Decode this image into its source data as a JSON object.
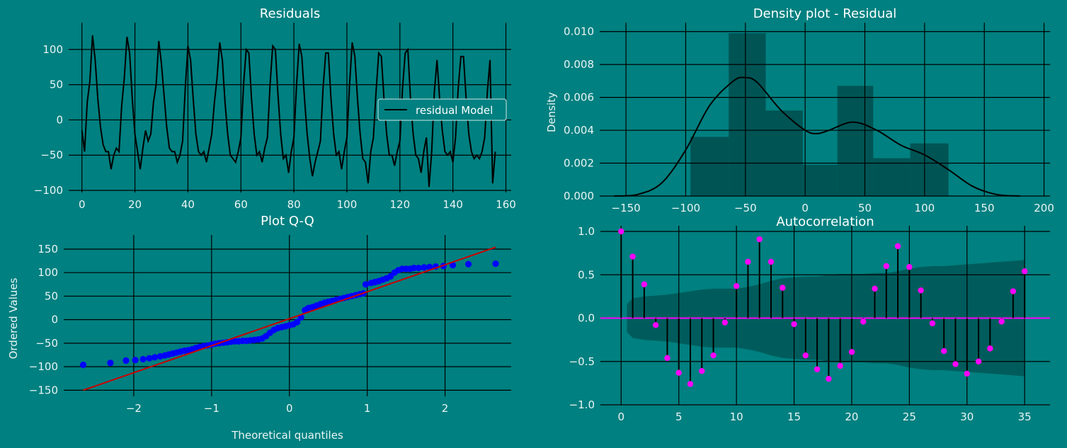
{
  "colors": {
    "background": "#008080",
    "grid": "#000000",
    "residual_line": "#000000",
    "hist_bar": "#004c4c",
    "kde_line": "#000000",
    "qq_points": "#0000ff",
    "qq_line": "#cc0000",
    "acf_markers": "#ff00ff",
    "acf_stems": "#000000",
    "acf_confidence": "#005656"
  },
  "chart_data": [
    {
      "id": "residuals",
      "type": "line",
      "title": "Residuals",
      "xlabel": "",
      "ylabel": "",
      "xlim": [
        -5,
        162
      ],
      "ylim": [
        -103,
        130
      ],
      "xticks": [
        0,
        20,
        40,
        60,
        80,
        100,
        120,
        140,
        160
      ],
      "yticks": [
        -100,
        -50,
        0,
        50,
        100
      ],
      "xtick_labels": [
        "0",
        "20",
        "40",
        "60",
        "80",
        "100",
        "120",
        "140",
        "160"
      ],
      "ytick_labels": [
        "−100",
        "−50",
        "0",
        "50",
        "100"
      ],
      "grid": true,
      "legend_position": "center-right",
      "series": [
        {
          "name": "residual Model",
          "values": [
            -15,
            -45,
            25,
            55,
            120,
            85,
            30,
            -10,
            -35,
            -45,
            -45,
            -70,
            -50,
            -40,
            -45,
            20,
            60,
            118,
            95,
            30,
            -20,
            -45,
            -70,
            -40,
            -15,
            -30,
            -20,
            25,
            50,
            112,
            80,
            35,
            -10,
            -40,
            -45,
            -45,
            -60,
            -50,
            -30,
            45,
            105,
            85,
            30,
            -20,
            -45,
            -50,
            -45,
            -60,
            -40,
            -20,
            25,
            60,
            110,
            85,
            25,
            -20,
            -50,
            -55,
            -60,
            -45,
            -25,
            50,
            100,
            95,
            30,
            -20,
            -50,
            -45,
            -60,
            -40,
            -25,
            50,
            105,
            100,
            35,
            -20,
            -55,
            -50,
            -75,
            -45,
            -25,
            50,
            108,
            90,
            30,
            -20,
            -55,
            -80,
            -60,
            -45,
            -30,
            45,
            95,
            95,
            30,
            -20,
            -50,
            -45,
            -70,
            -45,
            -25,
            50,
            110,
            90,
            30,
            -20,
            -55,
            -60,
            -90,
            -45,
            -25,
            40,
            95,
            90,
            30,
            -20,
            -50,
            -50,
            -65,
            -45,
            -30,
            45,
            95,
            100,
            30,
            -20,
            -50,
            -55,
            -75,
            -45,
            -25,
            -95,
            -45,
            40,
            85,
            30,
            -15,
            -45,
            -50,
            -45,
            -60,
            -25,
            45,
            90,
            90,
            30,
            -20,
            -45,
            -55,
            -50,
            -55,
            -45,
            -25,
            40,
            85,
            -90,
            -45
          ]
        }
      ]
    },
    {
      "id": "density",
      "type": "bar",
      "title": "Density plot - Residual",
      "xlabel": "",
      "ylabel": "Density",
      "xlim": [
        -172,
        205
      ],
      "ylim": [
        0,
        0.0102
      ],
      "xticks": [
        -150,
        -100,
        -50,
        0,
        50,
        100,
        150,
        200
      ],
      "yticks": [
        0,
        0.002,
        0.004,
        0.006,
        0.008,
        0.01
      ],
      "xtick_labels": [
        "−150",
        "−100",
        "−50",
        "0",
        "50",
        "100",
        "150",
        "200"
      ],
      "ytick_labels": [
        "0.000",
        "0.002",
        "0.004",
        "0.006",
        "0.008",
        "0.010"
      ],
      "grid": true,
      "bins": [
        {
          "from": -96,
          "to": -64,
          "value": 0.0036
        },
        {
          "from": -64,
          "to": -33,
          "value": 0.0099
        },
        {
          "from": -33,
          "to": -2,
          "value": 0.0052
        },
        {
          "from": -2,
          "to": 27,
          "value": 0.0019
        },
        {
          "from": 27,
          "to": 57,
          "value": 0.0067
        },
        {
          "from": 57,
          "to": 88,
          "value": 0.0023
        },
        {
          "from": 88,
          "to": 120,
          "value": 0.0032
        }
      ],
      "kde": {
        "x": [
          -160,
          -140,
          -120,
          -100,
          -80,
          -60,
          -50,
          -40,
          -20,
          0,
          10,
          20,
          40,
          60,
          80,
          100,
          120,
          140,
          160,
          180
        ],
        "y": [
          0,
          0.0001,
          0.0008,
          0.0028,
          0.0055,
          0.007,
          0.0072,
          0.0069,
          0.0052,
          0.004,
          0.0038,
          0.004,
          0.0045,
          0.004,
          0.0031,
          0.0025,
          0.0016,
          0.0006,
          0.0001,
          0
        ]
      }
    },
    {
      "id": "qq",
      "type": "scatter",
      "title": "Plot Q-Q",
      "xlabel": "Theoretical quantiles",
      "ylabel": "Ordered Values",
      "xlim": [
        -2.9,
        2.85
      ],
      "ylim": [
        -163,
        168
      ],
      "xticks": [
        -2,
        -1,
        0,
        1,
        2
      ],
      "yticks": [
        -150,
        -100,
        -50,
        0,
        50,
        100,
        150
      ],
      "xtick_labels": [
        "−2",
        "−1",
        "0",
        "1",
        "2"
      ],
      "ytick_labels": [
        "−150",
        "−100",
        "−50",
        "0",
        "50",
        "100",
        "150"
      ],
      "grid": true,
      "points": {
        "x": [
          -2.65,
          -2.3,
          -2.1,
          -1.98,
          -1.88,
          -1.8,
          -1.73,
          -1.66,
          -1.6,
          -1.55,
          -1.5,
          -1.45,
          -1.4,
          -1.35,
          -1.3,
          -1.25,
          -1.2,
          -1.15,
          -1.1,
          -1.05,
          -1.0,
          -0.95,
          -0.9,
          -0.85,
          -0.8,
          -0.75,
          -0.7,
          -0.65,
          -0.6,
          -0.55,
          -0.5,
          -0.45,
          -0.4,
          -0.35,
          -0.3,
          -0.25,
          -0.2,
          -0.15,
          -0.1,
          -0.05,
          0.0,
          0.05,
          0.1,
          0.15,
          0.2,
          0.22,
          0.25,
          0.3,
          0.35,
          0.4,
          0.45,
          0.5,
          0.55,
          0.6,
          0.65,
          0.7,
          0.75,
          0.8,
          0.85,
          0.9,
          0.95,
          0.98,
          1.05,
          1.1,
          1.15,
          1.2,
          1.25,
          1.3,
          1.35,
          1.4,
          1.45,
          1.5,
          1.55,
          1.6,
          1.66,
          1.73,
          1.8,
          1.88,
          1.98,
          2.1,
          2.3,
          2.65
        ],
        "y": [
          -96,
          -92,
          -87,
          -86,
          -84,
          -82,
          -80,
          -78,
          -76,
          -74,
          -72,
          -70,
          -68,
          -66,
          -65,
          -63,
          -60,
          -58,
          -56,
          -55,
          -53,
          -51,
          -50,
          -49,
          -48,
          -47,
          -46,
          -46,
          -45,
          -45,
          -44,
          -43,
          -42,
          -40,
          -35,
          -28,
          -22,
          -18,
          -16,
          -14,
          -12,
          -10,
          -5,
          5,
          20,
          22,
          25,
          27,
          30,
          33,
          36,
          38,
          40,
          42,
          44,
          46,
          48,
          50,
          52,
          54,
          56,
          75,
          78,
          80,
          82,
          85,
          88,
          92,
          100,
          105,
          108,
          108,
          108,
          110,
          110,
          111,
          112,
          113,
          114,
          116,
          118,
          119
        ]
      },
      "fit_line": {
        "x": [
          -2.65,
          2.65
        ],
        "y": [
          -150,
          154
        ]
      }
    },
    {
      "id": "acf",
      "type": "scatter",
      "title": "Autocorrelation",
      "xlabel": "",
      "ylabel": "",
      "xlim": [
        -1.8,
        37.2
      ],
      "ylim": [
        -1.0,
        1.0
      ],
      "xticks": [
        0,
        5,
        10,
        15,
        20,
        25,
        30,
        35
      ],
      "yticks": [
        -1.0,
        -0.5,
        0.0,
        0.5,
        1.0
      ],
      "xtick_labels": [
        "0",
        "5",
        "10",
        "15",
        "20",
        "25",
        "30",
        "35"
      ],
      "ytick_labels": [
        "−1.0",
        "−0.5",
        "0.0",
        "0.5",
        "1.0"
      ],
      "grid": true,
      "lags": [
        0,
        1,
        2,
        3,
        4,
        5,
        6,
        7,
        8,
        9,
        10,
        11,
        12,
        13,
        14,
        15,
        16,
        17,
        18,
        19,
        20,
        21,
        22,
        23,
        24,
        25,
        26,
        27,
        28,
        29,
        30,
        31,
        32,
        33,
        34,
        35
      ],
      "values": [
        1.0,
        0.71,
        0.39,
        -0.08,
        -0.46,
        -0.63,
        -0.76,
        -0.61,
        -0.43,
        -0.05,
        0.37,
        0.65,
        0.91,
        0.65,
        0.35,
        -0.07,
        -0.43,
        -0.59,
        -0.7,
        -0.55,
        -0.39,
        -0.04,
        0.34,
        0.6,
        0.83,
        0.59,
        0.32,
        -0.06,
        -0.38,
        -0.53,
        -0.64,
        -0.5,
        -0.35,
        -0.04,
        0.31,
        0.54
      ],
      "confidence_band": [
        0.16,
        0.23,
        0.25,
        0.26,
        0.27,
        0.29,
        0.31,
        0.33,
        0.34,
        0.34,
        0.34,
        0.36,
        0.39,
        0.43,
        0.46,
        0.47,
        0.48,
        0.48,
        0.5,
        0.51,
        0.51,
        0.51,
        0.52,
        0.52,
        0.54,
        0.57,
        0.59,
        0.6,
        0.6,
        0.61,
        0.62,
        0.63,
        0.64,
        0.65,
        0.66,
        0.67
      ]
    }
  ]
}
